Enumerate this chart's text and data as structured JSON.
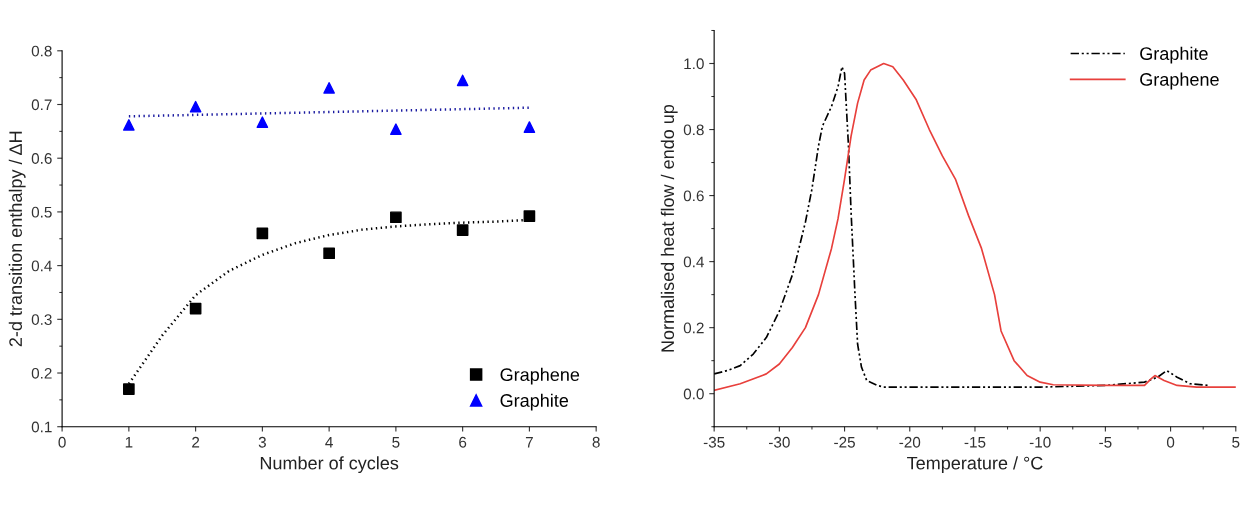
{
  "chart_data": [
    {
      "type": "scatter",
      "xlabel": "Number of cycles",
      "ylabel": "2-d transition enthalpy / ΔH",
      "xlim": [
        0,
        8
      ],
      "xticks": [
        0,
        1,
        2,
        3,
        4,
        5,
        6,
        7,
        8
      ],
      "ylim": [
        0.1,
        0.8
      ],
      "yticks": [
        0.1,
        0.2,
        0.3,
        0.4,
        0.5,
        0.6,
        0.7,
        0.8
      ],
      "grid": false,
      "legend": "bottom right",
      "series": [
        {
          "name": "Graphene",
          "color": "#000000",
          "marker": "square",
          "x": [
            1,
            2,
            3,
            4,
            5,
            6,
            7
          ],
          "values": [
            0.17,
            0.32,
            0.46,
            0.423,
            0.49,
            0.466,
            0.492
          ]
        },
        {
          "name": "Graphite",
          "color": "#0000ff",
          "marker": "triangle",
          "x": [
            1,
            2,
            3,
            4,
            5,
            6,
            7
          ],
          "values": [
            0.662,
            0.696,
            0.667,
            0.731,
            0.654,
            0.745,
            0.658
          ]
        },
        {
          "type": "line",
          "color": "#000000",
          "line_style": "dotted",
          "x": [
            1,
            1.5,
            2,
            2.5,
            3,
            3.5,
            4,
            4.5,
            5,
            5.5,
            6,
            6.5,
            7
          ],
          "values": [
            0.18,
            0.27,
            0.345,
            0.39,
            0.42,
            0.442,
            0.457,
            0.467,
            0.473,
            0.477,
            0.48,
            0.482,
            0.485
          ]
        },
        {
          "type": "line",
          "color": "#1a1aa0",
          "line_style": "dotted",
          "x": [
            1,
            7
          ],
          "values": [
            0.678,
            0.694
          ]
        }
      ]
    },
    {
      "type": "line",
      "xlabel": "Temperature / °C",
      "ylabel": "Normalised heat flow / endo up",
      "xlim": [
        -35,
        5
      ],
      "xticks": [
        -35,
        -30,
        -25,
        -20,
        -15,
        -10,
        -5,
        0,
        5
      ],
      "ylim": [
        -0.1,
        1.1
      ],
      "yticks": [
        {
          "value": 0,
          "label": "0.0"
        },
        0.2,
        0.4,
        0.6,
        0.8,
        {
          "value": 1,
          "label": "1.0"
        }
      ],
      "grid": false,
      "legend": "top right",
      "marker": "none",
      "series": [
        {
          "name": "Graphite",
          "color": "#000000",
          "line_style": "dashdot",
          "x": [
            -35,
            -34,
            -33,
            -32,
            -31,
            -30,
            -29,
            -28,
            -27.5,
            -27,
            -26.7,
            -26,
            -25.5,
            -25.2,
            -25,
            -24.7,
            -24.5,
            -24.2,
            -24,
            -23.7,
            -23.3,
            -22.5,
            -22,
            -15,
            -10,
            -5,
            -2,
            -1,
            -0.3,
            0.5,
            1.5,
            3
          ],
          "values": [
            0.06,
            0.07,
            0.085,
            0.12,
            0.17,
            0.25,
            0.36,
            0.52,
            0.62,
            0.75,
            0.81,
            0.87,
            0.93,
            0.99,
            0.97,
            0.75,
            0.55,
            0.3,
            0.15,
            0.08,
            0.04,
            0.025,
            0.02,
            0.02,
            0.02,
            0.025,
            0.035,
            0.05,
            0.07,
            0.05,
            0.03,
            0.025
          ]
        },
        {
          "name": "Graphene",
          "color": "#e8403c",
          "line_style": "solid",
          "x": [
            -35,
            -33,
            -31,
            -30,
            -29,
            -28,
            -27,
            -26,
            -25.5,
            -25,
            -24.5,
            -24,
            -23.5,
            -23,
            -22,
            -21.3,
            -20.5,
            -19.5,
            -18.5,
            -17.5,
            -16.5,
            -15.5,
            -14.5,
            -13.5,
            -13,
            -12,
            -11,
            -10,
            -9,
            -5,
            -2,
            -1.5,
            -1.2,
            -0.5,
            0.5,
            2,
            5
          ],
          "values": [
            0.01,
            0.03,
            0.06,
            0.09,
            0.14,
            0.2,
            0.3,
            0.44,
            0.53,
            0.65,
            0.78,
            0.88,
            0.95,
            0.98,
            1.0,
            0.99,
            0.95,
            0.89,
            0.8,
            0.72,
            0.65,
            0.54,
            0.44,
            0.3,
            0.19,
            0.1,
            0.055,
            0.035,
            0.027,
            0.025,
            0.025,
            0.045,
            0.055,
            0.04,
            0.025,
            0.02,
            0.02
          ]
        }
      ]
    }
  ]
}
